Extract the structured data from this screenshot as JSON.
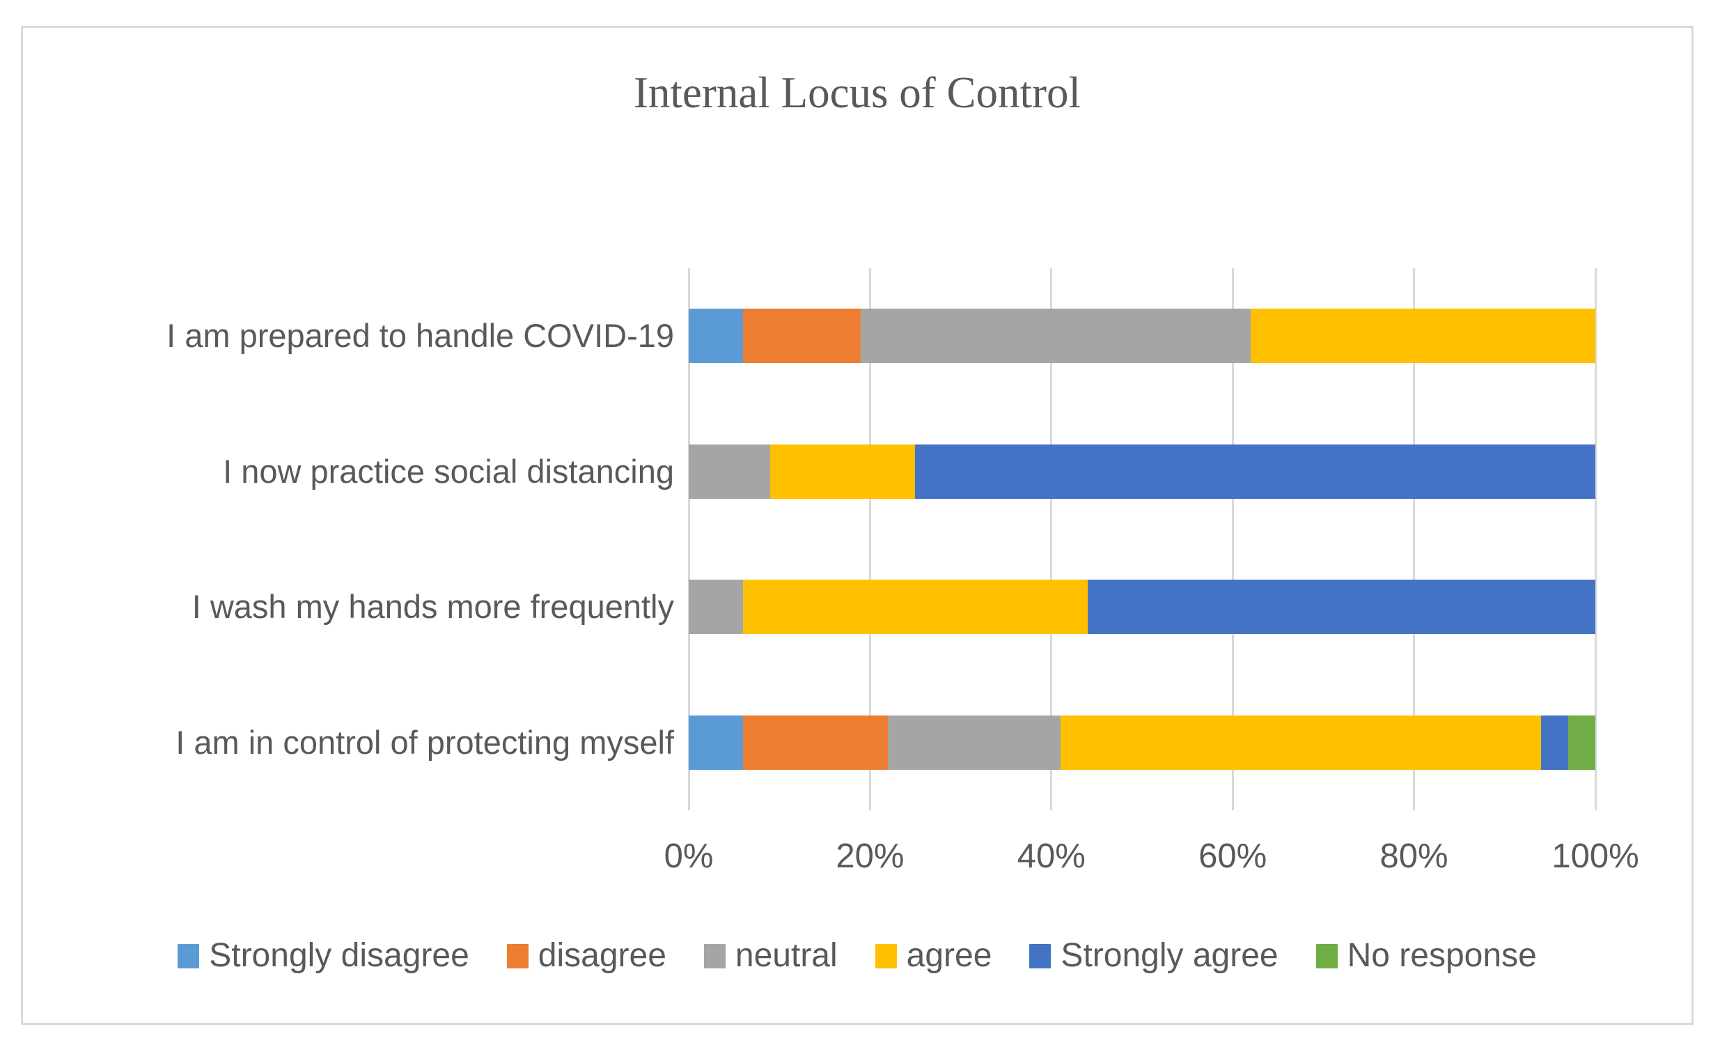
{
  "chart_data": {
    "type": "bar",
    "orientation": "horizontal",
    "stacked": true,
    "title": "Internal Locus of Control",
    "categories": [
      "I am prepared to handle COVID-19",
      "I now practice social distancing",
      "I wash my hands more frequently",
      "I am in control of protecting myself"
    ],
    "series": [
      {
        "name": "Strongly disagree",
        "color": "#5B9BD5",
        "values": [
          6,
          0,
          0,
          6
        ]
      },
      {
        "name": "disagree",
        "color": "#ED7D31",
        "values": [
          13,
          0,
          0,
          16
        ]
      },
      {
        "name": "neutral",
        "color": "#A5A5A5",
        "values": [
          43,
          9,
          6,
          19
        ]
      },
      {
        "name": "agree",
        "color": "#FFC000",
        "values": [
          38,
          16,
          38,
          53
        ]
      },
      {
        "name": "Strongly agree",
        "color": "#4472C4",
        "values": [
          0,
          75,
          56,
          3
        ]
      },
      {
        "name": "No response",
        "color": "#70AD47",
        "values": [
          0,
          0,
          0,
          3
        ]
      }
    ],
    "x_axis": {
      "min": 0,
      "max": 100,
      "unit": "percent",
      "ticks": [
        "0%",
        "20%",
        "40%",
        "60%",
        "80%",
        "100%"
      ]
    },
    "legend": {
      "position": "bottom",
      "entries": [
        "Strongly disagree",
        "disagree",
        "neutral",
        "agree",
        "Strongly agree",
        "No response"
      ]
    },
    "grid": {
      "vertical_gridlines": true,
      "gridline_color": "#D9D9D9"
    }
  },
  "style": {
    "background": "#FFFFFF",
    "border_color": "#D9D9D9",
    "text_color": "#595959"
  }
}
